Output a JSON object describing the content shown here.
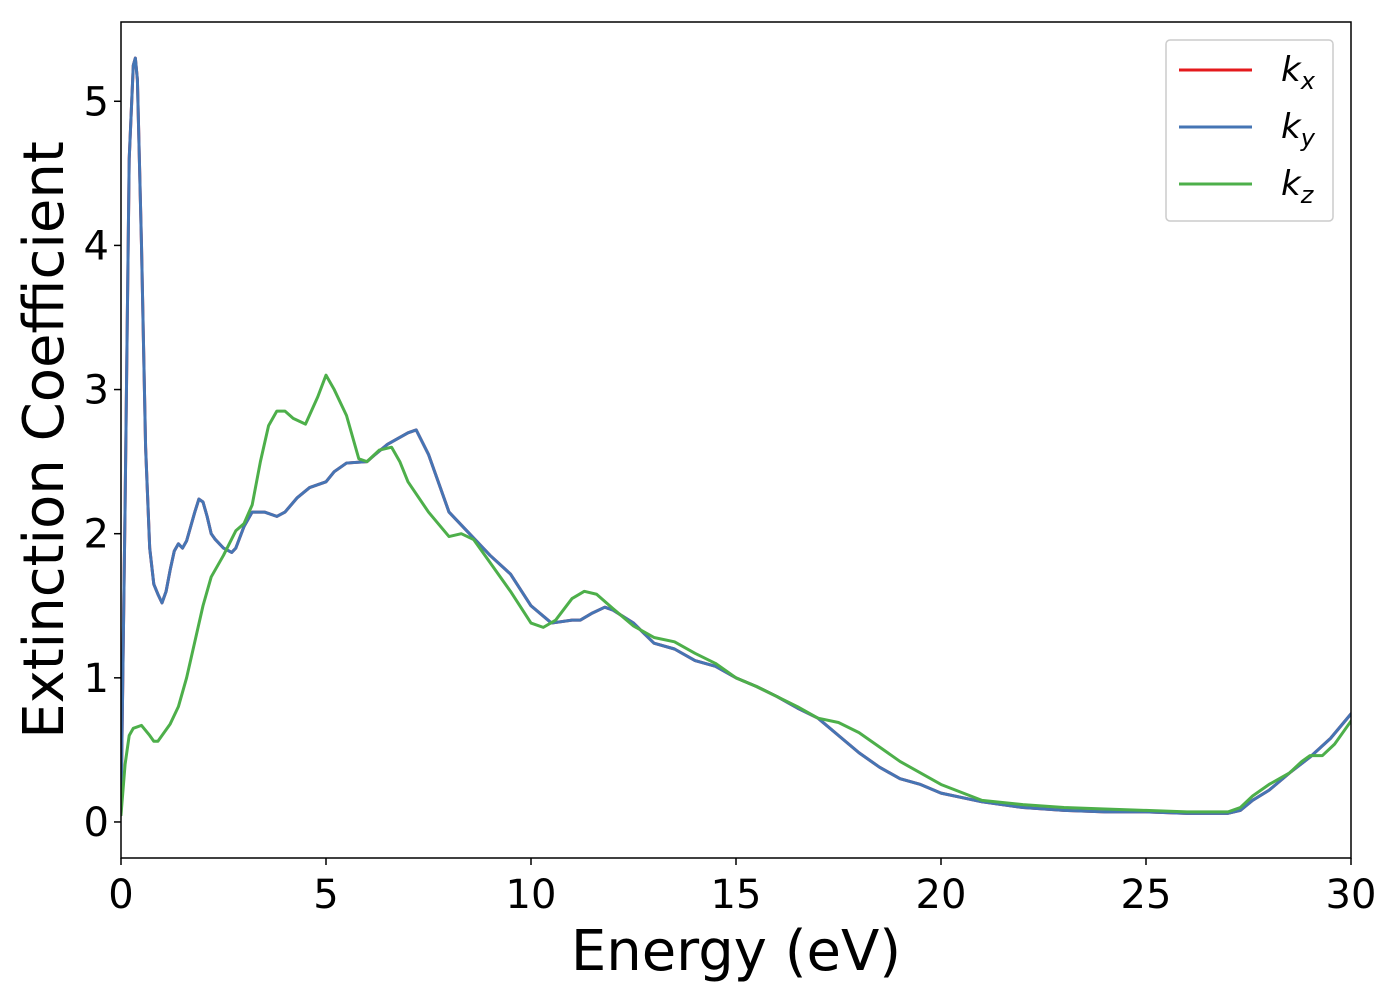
{
  "chart_data": {
    "type": "line",
    "title": "",
    "xlabel": "Energy (eV)",
    "ylabel": "Extinction Coefficient",
    "xlim": [
      0,
      30
    ],
    "ylim": [
      -0.25,
      5.55
    ],
    "xticks": [
      0,
      5,
      10,
      15,
      20,
      25,
      30
    ],
    "yticks": [
      0,
      1,
      2,
      3,
      4,
      5
    ],
    "xtick_labels": [
      "0",
      "5",
      "10",
      "15",
      "20",
      "25",
      "30"
    ],
    "ytick_labels": [
      "0",
      "1",
      "2",
      "3",
      "4",
      "5"
    ],
    "grid": false,
    "legend_position": "top-right",
    "series": [
      {
        "name": "k",
        "subscript": "x",
        "color": "#e41a1c",
        "x": [
          0,
          0.1,
          0.2,
          0.3,
          0.35,
          0.4,
          0.5,
          0.6,
          0.7,
          0.8,
          0.9,
          1.0,
          1.1,
          1.2,
          1.3,
          1.4,
          1.5,
          1.6,
          1.7,
          1.8,
          1.9,
          2.0,
          2.1,
          2.2,
          2.3,
          2.5,
          2.7,
          2.8,
          3.0,
          3.2,
          3.5,
          3.8,
          4.0,
          4.3,
          4.6,
          5.0,
          5.2,
          5.5,
          6.0,
          6.2,
          6.5,
          7.0,
          7.2,
          7.5,
          8.0,
          8.5,
          9.0,
          9.5,
          10.0,
          10.5,
          11.0,
          11.2,
          11.5,
          11.8,
          12.0,
          12.5,
          13.0,
          13.5,
          14.0,
          14.5,
          15.0,
          15.5,
          16.0,
          16.5,
          17.0,
          17.5,
          18.0,
          18.5,
          19.0,
          19.5,
          20.0,
          21.0,
          22.0,
          23.0,
          24.0,
          25.0,
          26.0,
          27.0,
          27.3,
          27.6,
          28.0,
          28.5,
          29.0,
          29.5,
          30.0
        ],
        "y": [
          0.05,
          2.2,
          4.6,
          5.25,
          5.3,
          5.15,
          4.0,
          2.6,
          1.9,
          1.65,
          1.58,
          1.52,
          1.6,
          1.75,
          1.88,
          1.93,
          1.9,
          1.95,
          2.05,
          2.15,
          2.24,
          2.22,
          2.12,
          2.0,
          1.96,
          1.9,
          1.87,
          1.9,
          2.05,
          2.15,
          2.15,
          2.12,
          2.15,
          2.25,
          2.32,
          2.36,
          2.43,
          2.49,
          2.5,
          2.55,
          2.62,
          2.7,
          2.72,
          2.55,
          2.15,
          2.0,
          1.85,
          1.72,
          1.5,
          1.38,
          1.4,
          1.4,
          1.45,
          1.49,
          1.47,
          1.38,
          1.24,
          1.2,
          1.12,
          1.08,
          1.0,
          0.94,
          0.87,
          0.79,
          0.72,
          0.6,
          0.48,
          0.38,
          0.3,
          0.26,
          0.2,
          0.14,
          0.1,
          0.08,
          0.07,
          0.07,
          0.06,
          0.06,
          0.08,
          0.15,
          0.22,
          0.34,
          0.45,
          0.58,
          0.75
        ]
      },
      {
        "name": "k",
        "subscript": "y",
        "color": "#4575b4",
        "x": [
          0,
          0.1,
          0.2,
          0.3,
          0.35,
          0.4,
          0.5,
          0.6,
          0.7,
          0.8,
          0.9,
          1.0,
          1.1,
          1.2,
          1.3,
          1.4,
          1.5,
          1.6,
          1.7,
          1.8,
          1.9,
          2.0,
          2.1,
          2.2,
          2.3,
          2.5,
          2.7,
          2.8,
          3.0,
          3.2,
          3.5,
          3.8,
          4.0,
          4.3,
          4.6,
          5.0,
          5.2,
          5.5,
          6.0,
          6.2,
          6.5,
          7.0,
          7.2,
          7.5,
          8.0,
          8.5,
          9.0,
          9.5,
          10.0,
          10.5,
          11.0,
          11.2,
          11.5,
          11.8,
          12.0,
          12.5,
          13.0,
          13.5,
          14.0,
          14.5,
          15.0,
          15.5,
          16.0,
          16.5,
          17.0,
          17.5,
          18.0,
          18.5,
          19.0,
          19.5,
          20.0,
          21.0,
          22.0,
          23.0,
          24.0,
          25.0,
          26.0,
          27.0,
          27.3,
          27.6,
          28.0,
          28.5,
          29.0,
          29.5,
          30.0
        ],
        "y": [
          0.05,
          2.2,
          4.6,
          5.25,
          5.3,
          5.15,
          4.0,
          2.6,
          1.9,
          1.65,
          1.58,
          1.52,
          1.6,
          1.75,
          1.88,
          1.93,
          1.9,
          1.95,
          2.05,
          2.15,
          2.24,
          2.22,
          2.12,
          2.0,
          1.96,
          1.9,
          1.87,
          1.9,
          2.05,
          2.15,
          2.15,
          2.12,
          2.15,
          2.25,
          2.32,
          2.36,
          2.43,
          2.49,
          2.5,
          2.55,
          2.62,
          2.7,
          2.72,
          2.55,
          2.15,
          2.0,
          1.85,
          1.72,
          1.5,
          1.38,
          1.4,
          1.4,
          1.45,
          1.49,
          1.47,
          1.38,
          1.24,
          1.2,
          1.12,
          1.08,
          1.0,
          0.94,
          0.87,
          0.79,
          0.72,
          0.6,
          0.48,
          0.38,
          0.3,
          0.26,
          0.2,
          0.14,
          0.1,
          0.08,
          0.07,
          0.07,
          0.06,
          0.06,
          0.08,
          0.15,
          0.22,
          0.34,
          0.45,
          0.58,
          0.75
        ]
      },
      {
        "name": "k",
        "subscript": "z",
        "color": "#4daf4a",
        "x": [
          0,
          0.1,
          0.2,
          0.3,
          0.5,
          0.7,
          0.8,
          0.9,
          1.0,
          1.2,
          1.4,
          1.6,
          1.8,
          2.0,
          2.2,
          2.5,
          2.8,
          3.0,
          3.2,
          3.4,
          3.6,
          3.8,
          4.0,
          4.2,
          4.5,
          4.8,
          5.0,
          5.2,
          5.5,
          5.8,
          6.0,
          6.3,
          6.6,
          6.8,
          7.0,
          7.5,
          8.0,
          8.3,
          8.6,
          9.0,
          9.5,
          10.0,
          10.3,
          10.6,
          11.0,
          11.3,
          11.6,
          12.0,
          12.5,
          13.0,
          13.5,
          14.0,
          14.5,
          15.0,
          15.5,
          16.0,
          16.5,
          17.0,
          17.5,
          18.0,
          18.5,
          19.0,
          19.5,
          20.0,
          21.0,
          22.0,
          23.0,
          24.0,
          25.0,
          26.0,
          27.0,
          27.3,
          27.6,
          28.0,
          28.5,
          28.8,
          29.0,
          29.3,
          29.6,
          30.0
        ],
        "y": [
          0.05,
          0.4,
          0.6,
          0.65,
          0.67,
          0.6,
          0.56,
          0.56,
          0.6,
          0.68,
          0.8,
          1.0,
          1.25,
          1.5,
          1.7,
          1.85,
          2.02,
          2.07,
          2.2,
          2.5,
          2.75,
          2.85,
          2.85,
          2.8,
          2.76,
          2.95,
          3.1,
          3.0,
          2.82,
          2.52,
          2.5,
          2.58,
          2.6,
          2.5,
          2.36,
          2.15,
          1.98,
          2.0,
          1.96,
          1.8,
          1.6,
          1.38,
          1.35,
          1.4,
          1.55,
          1.6,
          1.58,
          1.48,
          1.36,
          1.28,
          1.25,
          1.17,
          1.1,
          1.0,
          0.94,
          0.87,
          0.8,
          0.72,
          0.69,
          0.62,
          0.52,
          0.42,
          0.34,
          0.26,
          0.15,
          0.12,
          0.1,
          0.09,
          0.08,
          0.07,
          0.07,
          0.1,
          0.18,
          0.26,
          0.34,
          0.42,
          0.46,
          0.46,
          0.54,
          0.7
        ]
      }
    ]
  }
}
